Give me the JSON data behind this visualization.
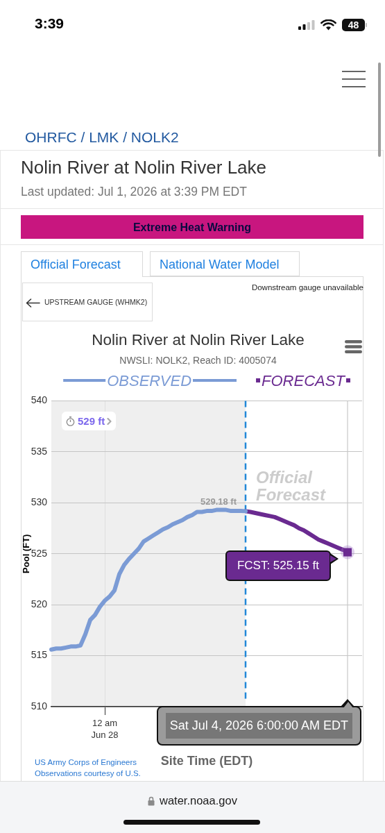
{
  "chart_data": {
    "type": "line",
    "title": "Nolin River at Nolin River Lake",
    "subtitle": "NWSLI: NOLK2, Reach ID: 4005074",
    "xlabel": "Site Time (EDT)",
    "ylabel": "Pool (FT)",
    "categories": [
      null,
      null,
      null,
      null,
      null,
      null,
      null,
      null,
      null,
      null,
      null,
      "12 am\nJun 28",
      null,
      null,
      null,
      null,
      null,
      null,
      null,
      null,
      null,
      null,
      null,
      null,
      null,
      null,
      null,
      null,
      null,
      null,
      null,
      null,
      null,
      null,
      null,
      null,
      null,
      null,
      null,
      null,
      null,
      null,
      null,
      null,
      null,
      null,
      null,
      null,
      null,
      null,
      null,
      null,
      null,
      null,
      null,
      null,
      null,
      null,
      null,
      null,
      null,
      null,
      null,
      null,
      null
    ],
    "series": [
      {
        "name": "OBSERVED",
        "color": "#7b9bd5",
        "values": [
          515.6,
          515.7,
          515.7,
          515.8,
          515.9,
          515.9,
          516.0,
          517.1,
          518.5,
          519.0,
          519.8,
          520.4,
          520.8,
          521.4,
          523.0,
          523.9,
          524.5,
          525.0,
          525.5,
          526.2,
          526.5,
          526.8,
          527.1,
          527.4,
          527.6,
          527.9,
          528.1,
          528.3,
          528.6,
          528.8,
          529.1,
          529.1,
          529.2,
          529.2,
          529.3,
          529.3,
          529.3,
          529.2,
          529.2,
          529.2,
          529.18,
          null,
          null,
          null,
          null,
          null,
          null,
          null,
          null,
          null,
          null,
          null,
          null,
          null,
          null,
          null,
          null,
          null,
          null,
          null,
          null,
          null,
          null,
          null,
          null
        ]
      },
      {
        "name": "FORECAST",
        "color": "#6a2a90",
        "values": [
          null,
          null,
          null,
          null,
          null,
          null,
          null,
          null,
          null,
          null,
          null,
          null,
          null,
          null,
          null,
          null,
          null,
          null,
          null,
          null,
          null,
          null,
          null,
          null,
          null,
          null,
          null,
          null,
          null,
          null,
          null,
          null,
          null,
          null,
          null,
          null,
          null,
          null,
          null,
          null,
          529.18,
          529.1,
          529.0,
          528.9,
          528.8,
          528.7,
          528.6,
          528.4,
          528.2,
          528.0,
          527.8,
          527.5,
          527.3,
          527.0,
          526.7,
          526.4,
          526.2,
          526.0,
          525.8,
          525.6,
          525.4,
          525.15,
          null,
          null,
          null
        ]
      }
    ],
    "ylim": [
      510,
      540
    ],
    "yticks": [
      510,
      515,
      520,
      525,
      530,
      535,
      540
    ],
    "grid": true,
    "legend": "top",
    "annotations": [
      "3:39",
      "48",
      "OHRFC / LMK / NOLK2",
      "Nolin River at Nolin River Lake",
      "Last updated: Jul 1, 2026 at 3:39 PM EDT",
      "Extreme Heat Warning",
      "Official Forecast",
      "National Water Model",
      "UPSTREAM GAUGE (WHMK2)",
      "Downstream gauge unavailable",
      "529 ft",
      "Official\nForecast",
      {
        "text": "529.18 ft",
        "y": 529.18
      },
      "FCST: 525.15 ft",
      "Sat Jul 4, 2026 6:00:00 AM EDT",
      "US Army Corps of Engineers",
      "Observations courtesy of U.S.",
      "water.noaa.gov"
    ]
  }
}
